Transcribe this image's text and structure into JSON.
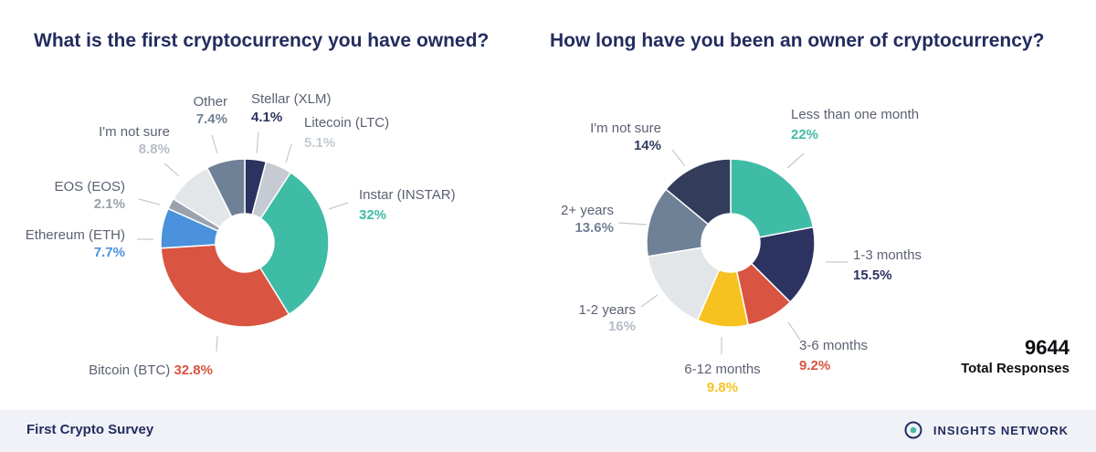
{
  "chart_data": [
    {
      "type": "pie",
      "donut": true,
      "title": "What is the first cryptocurrency you have owned?",
      "unit": "%",
      "slices": [
        {
          "label": "Stellar (XLM)",
          "value": "4.1%",
          "share": 4.1,
          "color": "#2c3361"
        },
        {
          "label": "Litecoin (LTC)",
          "value": "5.1%",
          "share": 5.1,
          "color": "#c6cbd3"
        },
        {
          "label": "Instar (INSTAR)",
          "value": "32%",
          "share": 32,
          "color": "#3fbca5"
        },
        {
          "label": "Bitcoin (BTC)",
          "value": "32.8%",
          "share": 32.8,
          "color": "#d95441"
        },
        {
          "label": "Ethereum (ETH)",
          "value": "7.7%",
          "share": 7.7,
          "color": "#4b91dc"
        },
        {
          "label": "EOS (EOS)",
          "value": "2.1%",
          "share": 2.1,
          "color": "#9aa3ad"
        },
        {
          "label": "I'm not sure",
          "value": "8.8%",
          "share": 8.8,
          "color": "#e3e6e9"
        },
        {
          "label": "Other",
          "value": "7.4%",
          "share": 7.4,
          "color": "#6f8196"
        }
      ]
    },
    {
      "type": "pie",
      "donut": true,
      "title": "How long have you been an owner of cryptocurrency?",
      "unit": "%",
      "slices": [
        {
          "label": "Less than one month",
          "value": "22%",
          "share": 22,
          "color": "#3fbca5"
        },
        {
          "label": "1-3 months",
          "value": "15.5%",
          "share": 15.5,
          "color": "#2c3361"
        },
        {
          "label": "3-6 months",
          "value": "9.2%",
          "share": 9.2,
          "color": "#d95441"
        },
        {
          "label": "6-12 months",
          "value": "9.8%",
          "share": 9.8,
          "color": "#f7c21f"
        },
        {
          "label": "1-2 years",
          "value": "16%",
          "share": 16,
          "color": "#e3e6e9"
        },
        {
          "label": "2+ years",
          "value": "13.6%",
          "share": 13.6,
          "color": "#6f8196"
        },
        {
          "label": "I'm not sure",
          "value": "14%",
          "share": 14,
          "color": "#343c5c"
        }
      ]
    }
  ],
  "total": {
    "value": "9644",
    "label": "Total Responses"
  },
  "footer": {
    "title": "First Crypto Survey",
    "brand": "INSIGHTS NETWORK"
  },
  "colors": {
    "title": "#232c5e",
    "footer_bg": "#f1f2f8",
    "label_text": "#5c6173"
  }
}
